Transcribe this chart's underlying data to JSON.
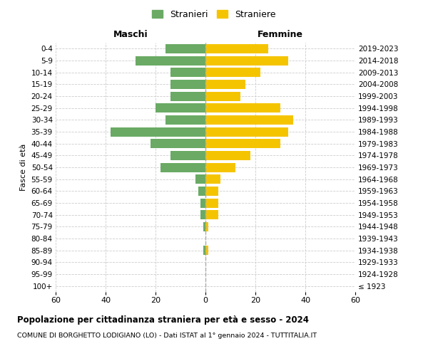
{
  "age_groups": [
    "100+",
    "95-99",
    "90-94",
    "85-89",
    "80-84",
    "75-79",
    "70-74",
    "65-69",
    "60-64",
    "55-59",
    "50-54",
    "45-49",
    "40-44",
    "35-39",
    "30-34",
    "25-29",
    "20-24",
    "15-19",
    "10-14",
    "5-9",
    "0-4"
  ],
  "birth_years": [
    "≤ 1923",
    "1924-1928",
    "1929-1933",
    "1934-1938",
    "1939-1943",
    "1944-1948",
    "1949-1953",
    "1954-1958",
    "1959-1963",
    "1964-1968",
    "1969-1973",
    "1974-1978",
    "1979-1983",
    "1984-1988",
    "1989-1993",
    "1994-1998",
    "1999-2003",
    "2004-2008",
    "2009-2013",
    "2014-2018",
    "2019-2023"
  ],
  "maschi": [
    0,
    0,
    0,
    1,
    0,
    1,
    2,
    2,
    3,
    4,
    18,
    14,
    22,
    38,
    16,
    20,
    14,
    14,
    14,
    28,
    16
  ],
  "femmine": [
    0,
    0,
    0,
    1,
    0,
    1,
    5,
    5,
    5,
    6,
    12,
    18,
    30,
    33,
    35,
    30,
    14,
    16,
    22,
    33,
    25
  ],
  "maschi_color": "#6aaa64",
  "femmine_color": "#f5c400",
  "xlim": 60,
  "title": "Popolazione per cittadinanza straniera per età e sesso - 2024",
  "subtitle": "COMUNE DI BORGHETTO LODIGIANO (LO) - Dati ISTAT al 1° gennaio 2024 - TUTTITALIA.IT",
  "legend_maschi": "Stranieri",
  "legend_femmine": "Straniere",
  "xlabel_left": "Maschi",
  "xlabel_right": "Femmine",
  "ylabel_left": "Fasce di età",
  "background_color": "#ffffff",
  "grid_color": "#cccccc",
  "centerline_color": "#aaaaaa"
}
